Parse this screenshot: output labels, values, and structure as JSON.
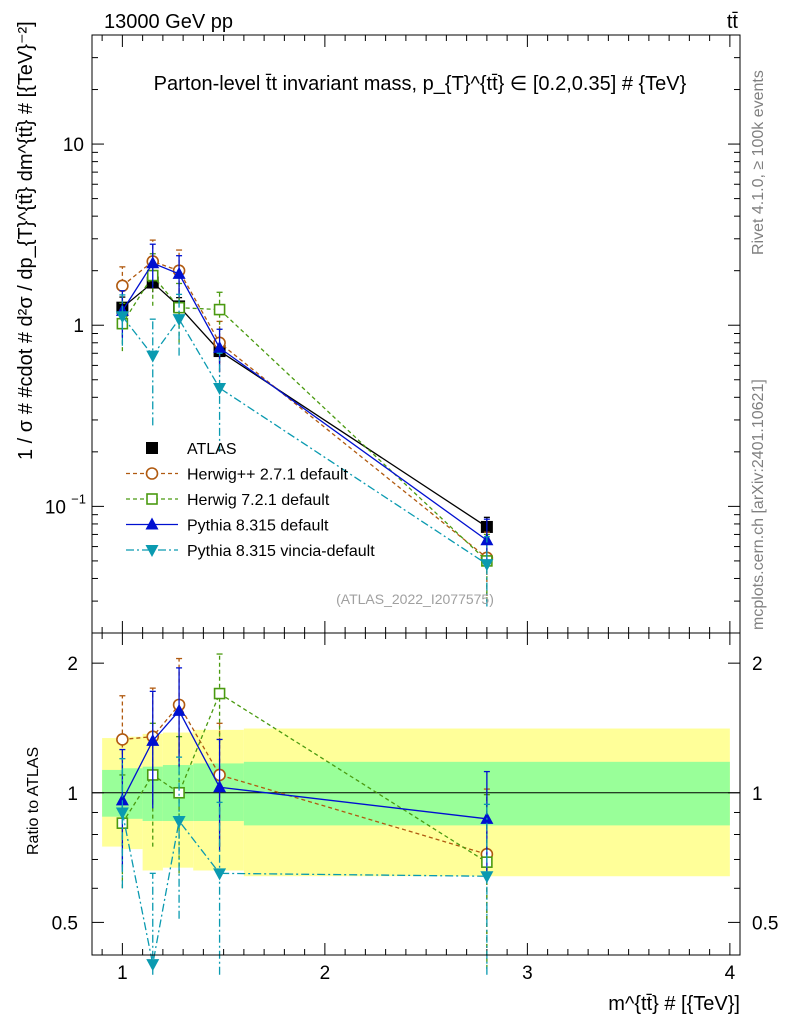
{
  "header": {
    "left": "13000 GeV pp",
    "right": "tt̄"
  },
  "side_labels": {
    "top": "Rivet 4.1.0, ≥ 100k events",
    "bottom": "mcplots.cern.ch [arXiv:2401.10621]"
  },
  "watermark": "(ATLAS_2022_I2077575)",
  "chart_data": [
    {
      "type": "scatter",
      "title": "Parton-level t̄t invariant mass, p_{T}^{tt̄} ∈ [0.2,0.35] # {TeV}",
      "ylabel": "1 / σ # #cdot # d²σ / dp_{T}^{tt̄} dm^{tt̄} # [{TeV}⁻²]",
      "yscale": "log",
      "xlim": [
        0.85,
        4.05
      ],
      "ylim": [
        0.02,
        40
      ],
      "yticks": [
        {
          "value": 0.1,
          "base": "10",
          "exp": "−1"
        },
        {
          "value": 1,
          "base": "1",
          "exp": ""
        },
        {
          "value": 10,
          "base": "10",
          "exp": ""
        }
      ],
      "legend_position": "center-left",
      "data_band": {
        "edges": [
          0.9,
          1.0,
          1.1,
          1.2,
          1.35,
          1.6,
          4.0
        ],
        "green": [
          [
            0.88,
            1.13
          ],
          [
            0.87,
            1.14
          ],
          [
            0.86,
            1.15
          ],
          [
            0.86,
            1.16
          ],
          [
            0.86,
            1.17
          ],
          [
            0.84,
            1.18
          ]
        ],
        "yellow": [
          [
            0.75,
            1.34
          ],
          [
            0.74,
            1.35
          ],
          [
            0.66,
            1.37
          ],
          [
            0.67,
            1.38
          ],
          [
            0.66,
            1.4
          ],
          [
            0.64,
            1.41
          ]
        ]
      },
      "series": [
        {
          "name": "ATLAS",
          "color": "#000000",
          "marker": "square-filled",
          "dash": "none",
          "x": [
            1.0,
            1.15,
            1.28,
            1.48,
            2.8
          ],
          "y": [
            1.25,
            1.72,
            1.27,
            0.72,
            0.077
          ],
          "err": [
            0.18,
            0.2,
            0.15,
            0.1,
            0.01
          ]
        },
        {
          "name": "Herwig++ 2.7.1 default",
          "color": "#b05a10",
          "marker": "circle-open",
          "dash": "4,3",
          "x": [
            1.0,
            1.15,
            1.28,
            1.48,
            2.8
          ],
          "y": [
            1.65,
            2.25,
            2.0,
            0.8,
            0.052
          ],
          "err": [
            0.45,
            0.7,
            0.6,
            0.25,
            0.02
          ]
        },
        {
          "name": "Herwig 7.2.1 default",
          "color": "#4a9a10",
          "marker": "square-open",
          "dash": "4,3",
          "x": [
            1.0,
            1.15,
            1.28,
            1.48,
            2.8
          ],
          "y": [
            1.02,
            1.88,
            1.25,
            1.22,
            0.05
          ],
          "err": [
            0.3,
            0.6,
            0.45,
            0.3,
            0.02
          ]
        },
        {
          "name": "Pythia 8.315 default",
          "color": "#0010d0",
          "marker": "triangle-up-filled",
          "dash": "none",
          "x": [
            1.0,
            1.15,
            1.28,
            1.48,
            2.8
          ],
          "y": [
            1.2,
            2.2,
            1.92,
            0.75,
            0.065
          ],
          "err": [
            0.35,
            0.6,
            0.5,
            0.2,
            0.02
          ]
        },
        {
          "name": "Pythia 8.315 vincia-default",
          "color": "#0a9ab0",
          "marker": "triangle-down-filled",
          "dash": "8,3,2,3",
          "x": [
            1.0,
            1.15,
            1.28,
            1.48,
            2.8
          ],
          "y": [
            1.12,
            0.68,
            1.08,
            0.45,
            0.048
          ],
          "err": [
            0.35,
            0.4,
            0.4,
            0.25,
            0.02
          ]
        }
      ]
    },
    {
      "type": "scatter",
      "title": "",
      "ylabel": "Ratio to ATLAS",
      "xlabel": "m^{tt̄} # [{TeV}]",
      "yscale": "log",
      "xlim": [
        0.85,
        4.05
      ],
      "ylim": [
        0.42,
        2.35
      ],
      "xticks": [
        1,
        2,
        3,
        4
      ],
      "yticks": [
        0.5,
        1,
        2
      ],
      "reference_line": 1,
      "series": [
        {
          "name": "Herwig++ 2.7.1 default",
          "color": "#b05a10",
          "marker": "circle-open",
          "dash": "4,3",
          "x": [
            1.0,
            1.15,
            1.28,
            1.48,
            2.8
          ],
          "y": [
            1.33,
            1.35,
            1.6,
            1.1,
            0.72
          ],
          "err": [
            0.35,
            0.4,
            0.45,
            0.35,
            0.3
          ]
        },
        {
          "name": "Herwig 7.2.1 default",
          "color": "#4a9a10",
          "marker": "square-open",
          "dash": "4,3",
          "x": [
            1.0,
            1.15,
            1.28,
            1.48,
            2.8
          ],
          "y": [
            0.85,
            1.1,
            1.0,
            1.7,
            0.69
          ],
          "err": [
            0.25,
            0.35,
            0.35,
            0.4,
            0.3
          ]
        },
        {
          "name": "Pythia 8.315 default",
          "color": "#0010d0",
          "marker": "triangle-up-filled",
          "dash": "none",
          "x": [
            1.0,
            1.15,
            1.28,
            1.48,
            2.8
          ],
          "y": [
            0.96,
            1.32,
            1.55,
            1.03,
            0.87
          ],
          "err": [
            0.3,
            0.4,
            0.4,
            0.3,
            0.25
          ]
        },
        {
          "name": "Pythia 8.315 vincia-default",
          "color": "#0a9ab0",
          "marker": "triangle-down-filled",
          "dash": "8,3,2,3",
          "x": [
            1.0,
            1.15,
            1.28,
            1.48,
            2.8
          ],
          "y": [
            0.9,
            0.4,
            0.86,
            0.65,
            0.64
          ],
          "err": [
            0.3,
            0.25,
            0.35,
            0.3,
            0.3
          ]
        }
      ]
    }
  ]
}
